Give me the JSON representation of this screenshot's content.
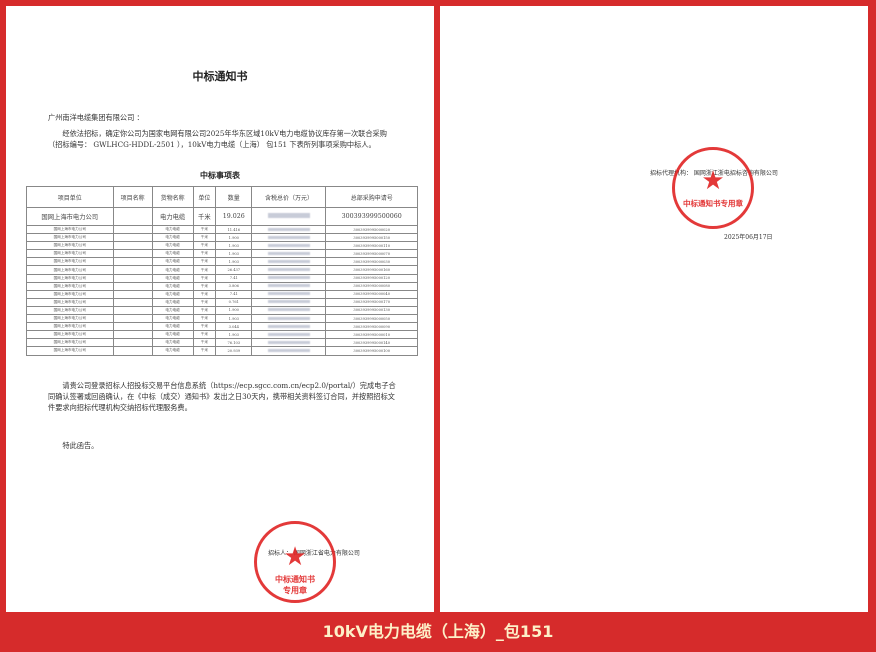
{
  "left_page": {
    "title": "中标通知书",
    "addressee": "广州南洋电缆集团有限公司 ：",
    "paragraph1": "经依法招标，确定你公司为国家电网有限公司2025年华东区域10kV电力电缆协议库存第一次联合采购（招标编号： GWLHCG-HDDL-2501 ），10kV电力电缆（上海） 包151 下表所列事项采购中标人。",
    "table_title": "中标事项表",
    "table": {
      "headers": [
        "项目单位",
        "项目名称",
        "货物名称",
        "单位",
        "数量",
        "含税总价（万元）",
        "总部采购申请号"
      ],
      "summary_row": [
        "国网上海市电力公司",
        "",
        "电力电缆",
        "千米",
        "19.026",
        "",
        "300393999500060"
      ],
      "rows": [
        [
          "国网上海市电力公司",
          "",
          "电力电缆",
          "千米",
          "11.416",
          "",
          "3003939995000020"
        ],
        [
          "国网上海市电力公司",
          "",
          "电力电缆",
          "千米",
          "1.900",
          "",
          "3003939995000150"
        ],
        [
          "国网上海市电力公司",
          "",
          "电力电缆",
          "千米",
          "1.903",
          "",
          "3003939995000110"
        ],
        [
          "国网上海市电力公司",
          "",
          "电力电缆",
          "千米",
          "1.903",
          "",
          "3003939995000070"
        ],
        [
          "国网上海市电力公司",
          "",
          "电力电缆",
          "千米",
          "1.903",
          "",
          "3003939995000030"
        ],
        [
          "国网上海市电力公司",
          "",
          "电力电缆",
          "千米",
          "26.437",
          "",
          "3003939995000160"
        ],
        [
          "国网上海市电力公司",
          "",
          "电力电缆",
          "千米",
          "7.41",
          "",
          "3003939995000120"
        ],
        [
          "国网上海市电力公司",
          "",
          "电力电缆",
          "千米",
          "3.806",
          "",
          "3003939995000080"
        ],
        [
          "国网上海市电力公司",
          "",
          "电力电缆",
          "千米",
          "7.41",
          "",
          "3003939995000040"
        ],
        [
          "国网上海市电力公司",
          "",
          "电力电缆",
          "千米",
          "0.761",
          "",
          "3003939995000170"
        ],
        [
          "国网上海市电力公司",
          "",
          "电力电缆",
          "千米",
          "1.900",
          "",
          "3003939995000130"
        ],
        [
          "国网上海市电力公司",
          "",
          "电力电缆",
          "千米",
          "1.903",
          "",
          "3003939995000050"
        ],
        [
          "国网上海市电力公司",
          "",
          "电力电缆",
          "千米",
          "3.044",
          "",
          "3003939995000090"
        ],
        [
          "国网上海市电力公司",
          "",
          "电力电缆",
          "千米",
          "1.903",
          "",
          "3003939995000010"
        ],
        [
          "国网上海市电力公司",
          "",
          "电力电缆",
          "千米",
          "76.103",
          "",
          "3003939995000140"
        ],
        [
          "国网上海市电力公司",
          "",
          "电力电缆",
          "千米",
          "20.939",
          "",
          "3003939995000100"
        ]
      ]
    },
    "paragraph2": "请贵公司登录招标人招投标交易平台信息系统（https://ecp.sgcc.com.cn/ecp2.0/portal/）完成电子合同确认签署或回函确认，在《中标（成交）通知书》发出之日30天内，携带相关资料签订合同，并按照招标文件要求向招标代理机构交纳招标代理服务费。",
    "closing": "特此函告。",
    "signature": "招标人： 国网浙江省电力有限公司",
    "stamp_text": "国网浙江省电力有限公司 中标通知书专用章"
  },
  "right_page": {
    "signature": "招标代理机构： 国网浙江浙电招标咨询有限公司",
    "stamp_text": "国网浙江浙电招标咨询有限公司 中标通知书专用章",
    "date": "2025年06月17日"
  },
  "caption": "10kV电力电缆（上海）_包151",
  "colors": {
    "frame": "#d62b2b",
    "stamp": "#e02424",
    "caption_text": "#fdf0c8"
  }
}
